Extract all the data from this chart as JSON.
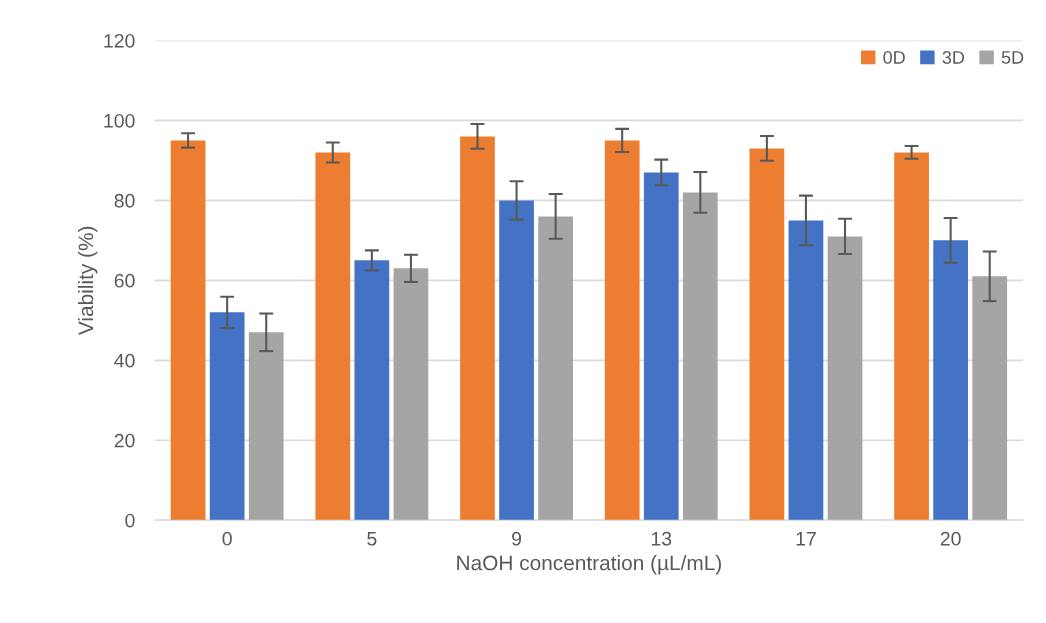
{
  "chart_data": {
    "type": "bar",
    "xlabel": "NaOH concentration (µL/mL)",
    "ylabel": "Viability (%)",
    "categories": [
      "0",
      "5",
      "9",
      "13",
      "17",
      "20"
    ],
    "series": [
      {
        "name": "0D",
        "color": "#ed7d31",
        "values": [
          95,
          92,
          96,
          95,
          93,
          92
        ],
        "errors": [
          1.8,
          2.5,
          3.1,
          2.9,
          3.1,
          1.6
        ]
      },
      {
        "name": "3D",
        "color": "#4472c4",
        "values": [
          52,
          65,
          80,
          87,
          75,
          70
        ],
        "errors": [
          3.9,
          2.5,
          4.8,
          3.2,
          6.2,
          5.6
        ]
      },
      {
        "name": "5D",
        "color": "#a5a5a5",
        "values": [
          47,
          63,
          76,
          82,
          71,
          61
        ],
        "errors": [
          4.7,
          3.4,
          5.6,
          5.1,
          4.4,
          6.2
        ]
      }
    ],
    "ylim": [
      0,
      120
    ],
    "yticks": [
      0,
      20,
      40,
      60,
      80,
      100,
      120
    ],
    "grid": "y",
    "legend": "top right"
  }
}
